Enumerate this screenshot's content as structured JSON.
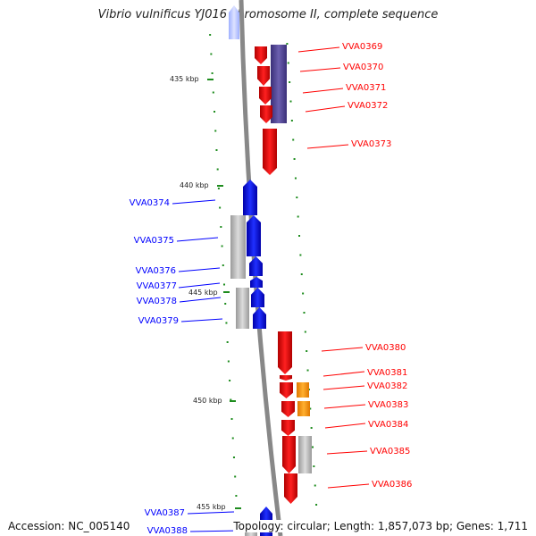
{
  "title": "Vibrio vulnificus YJ016 chromosome II, complete sequence",
  "accession": "Accession: NC_005140",
  "stats": "Topology: circular; Length: 1,857,073 bp; Genes: 1,711",
  "colors": {
    "backbone": "#888888",
    "forward": "#ff0000",
    "reverse": "#0000ff",
    "tick": "#1e8c1e",
    "grey": "#c0c0c0",
    "navy": "#4b3f8c",
    "orange": "#ff9a00"
  },
  "scale": [
    {
      "label": "435 kbp"
    },
    {
      "label": "440 kbp"
    },
    {
      "label": "445 kbp"
    },
    {
      "label": "450 kbp"
    },
    {
      "label": "455 kbp"
    }
  ],
  "labels": [
    {
      "text": "VVA0369",
      "strand": "forward"
    },
    {
      "text": "VVA0370",
      "strand": "forward"
    },
    {
      "text": "VVA0371",
      "strand": "forward"
    },
    {
      "text": "VVA0372",
      "strand": "forward"
    },
    {
      "text": "VVA0373",
      "strand": "forward"
    },
    {
      "text": "VVA0374",
      "strand": "reverse"
    },
    {
      "text": "VVA0375",
      "strand": "reverse"
    },
    {
      "text": "VVA0376",
      "strand": "reverse"
    },
    {
      "text": "VVA0377",
      "strand": "reverse"
    },
    {
      "text": "VVA0378",
      "strand": "reverse"
    },
    {
      "text": "VVA0379",
      "strand": "reverse"
    },
    {
      "text": "VVA0380",
      "strand": "forward"
    },
    {
      "text": "VVA0381",
      "strand": "forward"
    },
    {
      "text": "VVA0382",
      "strand": "forward"
    },
    {
      "text": "VVA0383",
      "strand": "forward"
    },
    {
      "text": "VVA0384",
      "strand": "forward"
    },
    {
      "text": "VVA0385",
      "strand": "forward"
    },
    {
      "text": "VVA0386",
      "strand": "forward"
    },
    {
      "text": "VVA0387",
      "strand": "reverse"
    },
    {
      "text": "VVA0388",
      "strand": "reverse"
    }
  ]
}
